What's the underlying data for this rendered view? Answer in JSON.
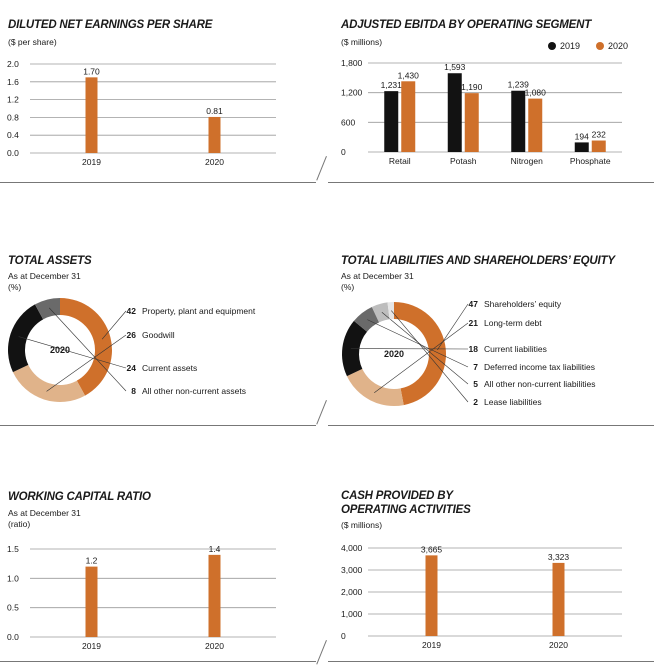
{
  "colors": {
    "orange": "#cf702b",
    "black": "#121212",
    "tan": "#e0b38a",
    "gray": "#6a6a6a",
    "lightgray": "#bdbdbd",
    "grid": "#9a9a9a"
  },
  "chart_data": [
    {
      "id": "eps",
      "type": "bar",
      "title": "DILUTED NET EARNINGS PER SHARE",
      "subtitle": "($ per share)",
      "categories": [
        "2019",
        "2020"
      ],
      "values": [
        1.7,
        0.81
      ],
      "value_labels": [
        "1.70",
        "0.81"
      ],
      "ylim": [
        0,
        2.0
      ],
      "yticks": [
        0,
        0.4,
        0.8,
        1.2,
        1.6,
        2.0
      ],
      "ytick_labels": [
        "0.0",
        "0.4",
        "0.8",
        "1.2",
        "1.6",
        "2.0"
      ]
    },
    {
      "id": "ebitda",
      "type": "bar",
      "title": "ADJUSTED EBITDA BY OPERATING SEGMENT",
      "subtitle": "($ millions)",
      "categories": [
        "Retail",
        "Potash",
        "Nitrogen",
        "Phosphate"
      ],
      "series": [
        {
          "name": "2019",
          "color": "#121212",
          "values": [
            1231,
            1593,
            1239,
            194
          ],
          "value_labels": [
            "1,231",
            "1,593",
            "1,239",
            "194"
          ]
        },
        {
          "name": "2020",
          "color": "#cf702b",
          "values": [
            1430,
            1190,
            1080,
            232
          ],
          "value_labels": [
            "1,430",
            "1,190",
            "1,080",
            "232"
          ]
        }
      ],
      "legend": [
        "2019",
        "2020"
      ],
      "ylim": [
        0,
        1800
      ],
      "yticks": [
        0,
        600,
        1200,
        1800
      ],
      "ytick_labels": [
        "0",
        "600",
        "1,200",
        "1,800"
      ]
    },
    {
      "id": "assets",
      "type": "pie",
      "title": "TOTAL ASSETS",
      "subtitle_lines": [
        "As at December 31",
        "(%)"
      ],
      "center_label": "2020",
      "slices": [
        {
          "label": "Property, plant and equipment",
          "value": 42,
          "value_label": "42",
          "color": "#cf702b"
        },
        {
          "label": "Goodwill",
          "value": 26,
          "value_label": "26",
          "color": "#e0b38a"
        },
        {
          "label": "Current assets",
          "value": 24,
          "value_label": "24",
          "color": "#121212"
        },
        {
          "label": "All other non-current assets",
          "value": 8,
          "value_label": "8",
          "color": "#6a6a6a"
        }
      ]
    },
    {
      "id": "liabilities",
      "type": "pie",
      "title": "TOTAL LIABILITIES AND SHAREHOLDERS’ EQUITY",
      "subtitle_lines": [
        "As at December 31",
        "(%)"
      ],
      "center_label": "2020",
      "slices": [
        {
          "label": "Shareholders’ equity",
          "value": 47,
          "value_label": "47",
          "color": "#cf702b"
        },
        {
          "label": "Long-term debt",
          "value": 21,
          "value_label": "21",
          "color": "#e0b38a"
        },
        {
          "label": "Current liabilities",
          "value": 18,
          "value_label": "18",
          "color": "#121212"
        },
        {
          "label": "Deferred income tax liabilities",
          "value": 7,
          "value_label": "7",
          "color": "#6a6a6a"
        },
        {
          "label": "All other non-current liabilities",
          "value": 5,
          "value_label": "5",
          "color": "#bdbdbd"
        },
        {
          "label": "Lease liabilities",
          "value": 2,
          "value_label": "2",
          "color": "#e6e6e6"
        }
      ]
    },
    {
      "id": "wcr",
      "type": "bar",
      "title": "WORKING CAPITAL RATIO",
      "subtitle_lines": [
        "As at December 31",
        "(ratio)"
      ],
      "categories": [
        "2019",
        "2020"
      ],
      "values": [
        1.2,
        1.4
      ],
      "value_labels": [
        "1.2",
        "1.4"
      ],
      "ylim": [
        0,
        1.5
      ],
      "yticks": [
        0,
        0.5,
        1.0,
        1.5
      ],
      "ytick_labels": [
        "0.0",
        "0.5",
        "1.0",
        "1.5"
      ]
    },
    {
      "id": "cash",
      "type": "bar",
      "title_lines": [
        "CASH PROVIDED BY",
        "OPERATING ACTIVITIES"
      ],
      "subtitle": "($ millions)",
      "categories": [
        "2019",
        "2020"
      ],
      "values": [
        3665,
        3323
      ],
      "value_labels": [
        "3,665",
        "3,323"
      ],
      "ylim": [
        0,
        4000
      ],
      "yticks": [
        0,
        1000,
        2000,
        3000,
        4000
      ],
      "ytick_labels": [
        "0",
        "1,000",
        "2,000",
        "3,000",
        "4,000"
      ]
    }
  ]
}
